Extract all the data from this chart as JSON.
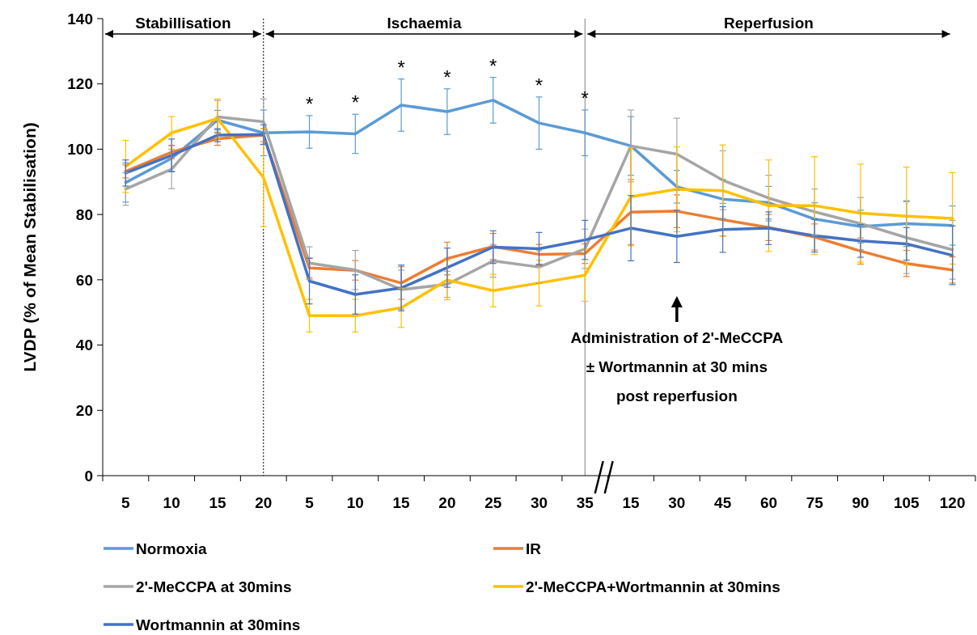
{
  "chart_data": {
    "type": "line",
    "ylabel": "LVDP (% of Mean Stabilisation)",
    "categories": [
      "5",
      "10",
      "15",
      "20",
      "5",
      "10",
      "15",
      "20",
      "25",
      "30",
      "35",
      "15",
      "30",
      "45",
      "60",
      "75",
      "90",
      "105",
      "120"
    ],
    "ylim": [
      0,
      140
    ],
    "yticks": [
      0,
      20,
      40,
      60,
      80,
      100,
      120,
      140
    ],
    "legend": "bottom",
    "marker": "none",
    "line_style": "solid",
    "series": [
      {
        "name": "Normoxia",
        "color": "#5b9bd5",
        "values": [
          89.8,
          97.2,
          108.9,
          105,
          105.3,
          104.7,
          113.5,
          111.5,
          115,
          108,
          105,
          101,
          88.5,
          84.7,
          83.6,
          78.6,
          76.3,
          77.2,
          76.6
        ],
        "errors": [
          6,
          4,
          3,
          7,
          5,
          6,
          8,
          7,
          7,
          8,
          7,
          9,
          5,
          6,
          5,
          5,
          5,
          7,
          6
        ],
        "value_labels": [
          null,
          null,
          null,
          null,
          "*",
          "*",
          "*",
          "*",
          "*",
          "*",
          "*",
          null,
          null,
          null,
          null,
          null,
          null,
          null,
          null
        ]
      },
      {
        "name": "IR",
        "color": "#ed7d31",
        "values": [
          93.2,
          99.1,
          103.2,
          104.3,
          63.6,
          62.9,
          59,
          66.5,
          70.2,
          67.8,
          68,
          80.7,
          81,
          78.4,
          76,
          73.1,
          68.8,
          65,
          63
        ],
        "errors": [
          2,
          2,
          2,
          2,
          3,
          3,
          5,
          5,
          4,
          3,
          3,
          10,
          5,
          5,
          4,
          4,
          4,
          4,
          4
        ]
      },
      {
        "name": "2'-MeCCPA at 30mins",
        "color": "#a5a5a5",
        "values": [
          87.8,
          93.9,
          109.9,
          108.4,
          65.1,
          63,
          57,
          58.6,
          65.8,
          63.9,
          69.5,
          101,
          98.5,
          90.5,
          85,
          80.8,
          77.2,
          72.9,
          69.2
        ],
        "errors": [
          5,
          6,
          5,
          7,
          5,
          6,
          6,
          4,
          5,
          5,
          6,
          11,
          11,
          9,
          7,
          7,
          8,
          11,
          9
        ]
      },
      {
        "name": "2'-MeCCPA+Wortmannin at 30mins",
        "color": "#ffc000",
        "values": [
          94.7,
          105,
          109.4,
          91.3,
          49,
          49,
          51.4,
          59.9,
          56.7,
          59,
          61.4,
          85.4,
          87.7,
          87.3,
          82.7,
          82.7,
          80.4,
          79.5,
          78.8
        ],
        "errors": [
          8,
          5,
          6,
          15,
          5,
          5,
          6,
          6,
          5,
          7,
          8,
          15,
          13,
          14,
          14,
          15,
          15,
          15,
          14
        ]
      },
      {
        "name": "Wortmannin at 30mins",
        "color": "#4472c4",
        "values": [
          92.7,
          98.1,
          104.3,
          104.5,
          59.6,
          55.5,
          57.5,
          63.7,
          70,
          69.5,
          72.2,
          75.8,
          73.3,
          75.4,
          75.8,
          73.5,
          71.9,
          71,
          67.5
        ],
        "errors": [
          4,
          5,
          2,
          3,
          7,
          6,
          7,
          6,
          5,
          5,
          6,
          10,
          8,
          7,
          5,
          5,
          5,
          5,
          9
        ]
      }
    ],
    "ref_lines": [
      {
        "axis": "x",
        "value": "20",
        "line_style": "dotted",
        "color": "#000000"
      },
      {
        "axis": "x",
        "value": "35",
        "line_style": "solid",
        "color": "#808080"
      }
    ],
    "annotations": [
      "Stabillisation",
      "Ischaemia",
      "Reperfusion",
      "Administration of 2'-MeCCPA ± Wortmannin at 30 mins post reperfusion"
    ]
  }
}
